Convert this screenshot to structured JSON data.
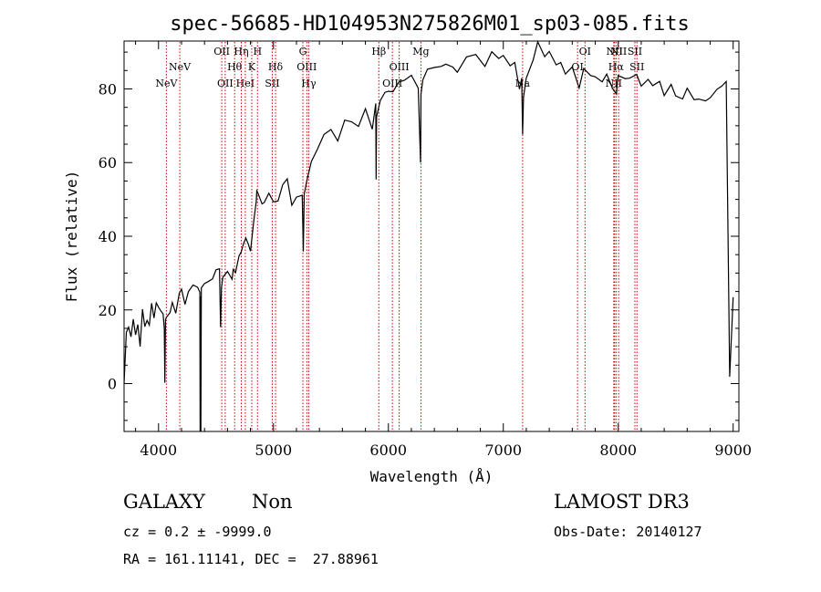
{
  "chart_data": {
    "type": "line",
    "title": "spec-56685-HD104953N275826M01_sp03-085.fits",
    "xlabel": "Wavelength (Å)",
    "ylabel": "Flux (relative)",
    "xlim": [
      3700,
      9050
    ],
    "ylim": [
      -13,
      93
    ],
    "xticks": [
      4000,
      5000,
      6000,
      7000,
      8000,
      9000
    ],
    "yticks": [
      0,
      20,
      40,
      60,
      80
    ],
    "grid": false,
    "series": [
      {
        "color": "#000000",
        "x": [
          3700,
          3720,
          3740,
          3760,
          3780,
          3800,
          3820,
          3840,
          3860,
          3880,
          3900,
          3920,
          3940,
          3960,
          3980,
          4000,
          4020,
          4040,
          4050,
          4055,
          4060,
          4070,
          4100,
          4120,
          4150,
          4180,
          4200,
          4230,
          4260,
          4300,
          4340,
          4360,
          4362,
          4366,
          4368,
          4372,
          4400,
          4430,
          4470,
          4500,
          4530,
          4540,
          4548,
          4560,
          4600,
          4640,
          4650,
          4670,
          4700,
          4720,
          4740,
          4760,
          4780,
          4800,
          4830,
          4850,
          4855,
          4861,
          4880,
          4900,
          4920,
          4960,
          5000,
          5040,
          5080,
          5120,
          5160,
          5200,
          5250,
          5260,
          5268,
          5290,
          5330,
          5380,
          5440,
          5500,
          5560,
          5620,
          5680,
          5740,
          5800,
          5860,
          5890,
          5893,
          5897,
          5930,
          5970,
          6000,
          6040,
          6090,
          6140,
          6200,
          6260,
          6280,
          6284,
          6300,
          6340,
          6400,
          6460,
          6500,
          6560,
          6600,
          6680,
          6760,
          6840,
          6900,
          6960,
          7000,
          7060,
          7100,
          7140,
          7160,
          7168,
          7176,
          7200,
          7260,
          7300,
          7360,
          7400,
          7460,
          7500,
          7540,
          7600,
          7660,
          7700,
          7760,
          7800,
          7860,
          7900,
          7950,
          7985,
          7990,
          8000,
          8060,
          8100,
          8160,
          8200,
          8260,
          8300,
          8360,
          8400,
          8460,
          8500,
          8560,
          8600,
          8660,
          8700,
          8760,
          8800,
          8860,
          8900,
          8940,
          8970,
          9000
        ],
        "values": [
          0,
          14,
          16,
          12,
          17,
          14,
          16,
          10,
          20,
          15,
          18,
          16,
          21,
          18,
          22,
          21,
          20,
          18,
          15,
          1,
          17,
          18,
          19,
          22,
          20,
          24,
          25,
          22,
          25,
          27,
          26,
          24,
          -14,
          24,
          -14,
          26,
          27,
          28,
          29,
          30,
          31,
          16,
          26,
          29,
          30,
          28,
          32,
          30,
          34,
          36,
          38,
          40,
          38,
          35,
          45,
          50,
          52,
          52,
          50,
          49,
          50,
          51,
          49,
          50,
          54,
          56,
          48,
          50,
          52,
          36,
          51,
          55,
          60,
          64,
          68,
          68,
          66,
          72,
          71,
          70,
          74,
          69,
          77,
          55,
          72,
          77,
          79,
          80,
          79,
          81,
          83,
          84,
          80,
          60,
          78,
          83,
          86,
          85,
          86,
          87,
          86,
          85,
          88,
          89,
          87,
          90,
          88,
          89,
          86,
          88,
          80,
          82,
          68,
          78,
          83,
          88,
          92,
          89,
          91,
          86,
          87,
          84,
          86,
          81,
          85,
          83,
          84,
          82,
          84,
          80,
          78,
          82,
          84,
          82,
          83,
          84,
          81,
          83,
          80,
          82,
          79,
          81,
          78,
          77,
          80,
          78,
          77,
          76,
          78,
          80,
          81,
          82,
          1,
          24
        ]
      }
    ],
    "spectral_lines": [
      {
        "wavelength": 4068,
        "label": "NeV",
        "row": 2
      },
      {
        "wavelength": 4185,
        "label": "NeV",
        "row": 1
      },
      {
        "wavelength": 4550,
        "label": "OII",
        "row": 0
      },
      {
        "wavelength": 4580,
        "label": "OII",
        "row": 2
      },
      {
        "wavelength": 4662,
        "label": "Hθ",
        "row": 1
      },
      {
        "wavelength": 4720,
        "label": "Hη",
        "row": 0
      },
      {
        "wavelength": 4755,
        "label": "HeI",
        "row": 2
      },
      {
        "wavelength": 4811,
        "label": "K",
        "row": 1
      },
      {
        "wavelength": 4861,
        "label": "H",
        "row": 0
      },
      {
        "wavelength": 4990,
        "label": "SII",
        "row": 2
      },
      {
        "wavelength": 5018,
        "label": "Hδ",
        "row": 1
      },
      {
        "wavelength": 5256,
        "label": "G",
        "row": 0
      },
      {
        "wavelength": 5290,
        "label": "OIII",
        "row": 1
      },
      {
        "wavelength": 5307,
        "label": "Hγ",
        "row": 2
      },
      {
        "wavelength": 5917,
        "label": "Hβ",
        "row": 0
      },
      {
        "wavelength": 6035,
        "label": "OIII",
        "row": 2
      },
      {
        "wavelength": 6094,
        "label": "OIII",
        "row": 1
      },
      {
        "wavelength": 6283,
        "label": "Mg",
        "row": 0
      },
      {
        "wavelength": 7168,
        "label": "Na",
        "row": 2
      },
      {
        "wavelength": 7646,
        "label": "OI",
        "row": 1
      },
      {
        "wavelength": 7711,
        "label": "OI",
        "row": 0
      },
      {
        "wavelength": 7961,
        "label": "NII",
        "row": 2
      },
      {
        "wavelength": 7968,
        "label": "NII",
        "row": 0
      },
      {
        "wavelength": 7981,
        "label": "Hα",
        "row": 1
      },
      {
        "wavelength": 8003,
        "label": "NII",
        "row": 0
      },
      {
        "wavelength": 8145,
        "label": "SII",
        "row": 0
      },
      {
        "wavelength": 8163,
        "label": "SII",
        "row": 1
      }
    ]
  },
  "footer": {
    "object_type": "GALAXY",
    "subclass": "Non",
    "survey": "LAMOST DR3",
    "cz": "cz = 0.2 ± -9999.0",
    "obs_date": "Obs-Date: 20140127",
    "coords": "RA = 161.11141, DEC =  27.88961"
  },
  "colors": {
    "spectrum": "#000000",
    "line_markers": "#cc0000",
    "axes": "#000000"
  }
}
